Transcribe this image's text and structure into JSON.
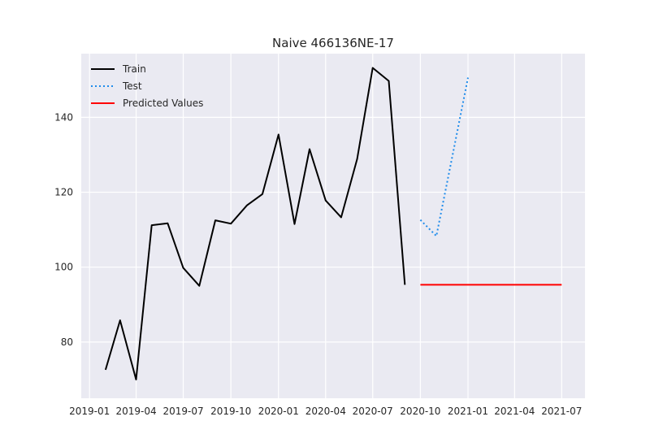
{
  "chart_data": {
    "type": "line",
    "title": "Naive 466136NE-17",
    "xlabel": "",
    "ylabel": "",
    "x_range": [
      "2018-12-16",
      "2021-08-15"
    ],
    "ylim": [
      65,
      157
    ],
    "x_ticks": [
      "2019-01",
      "2019-04",
      "2019-07",
      "2019-10",
      "2020-01",
      "2020-04",
      "2020-07",
      "2020-10",
      "2021-01",
      "2021-04",
      "2021-07"
    ],
    "y_ticks": [
      80,
      100,
      120,
      140
    ],
    "grid": true,
    "legend_position": "top-left",
    "series": [
      {
        "name": "Train",
        "color": "#000000",
        "style": "solid",
        "x": [
          "2019-02-01",
          "2019-03-01",
          "2019-04-01",
          "2019-05-01",
          "2019-06-01",
          "2019-07-01",
          "2019-08-01",
          "2019-09-01",
          "2019-10-01",
          "2019-11-01",
          "2019-12-01",
          "2020-01-01",
          "2020-02-01",
          "2020-03-01",
          "2020-04-01",
          "2020-05-01",
          "2020-06-01",
          "2020-07-01",
          "2020-08-01",
          "2020-09-01"
        ],
        "values": [
          72.6,
          85.8,
          70.0,
          111.2,
          111.7,
          99.8,
          95.0,
          112.5,
          111.6,
          116.5,
          119.5,
          135.4,
          111.5,
          131.5,
          117.8,
          113.3,
          128.9,
          153.2,
          149.7,
          95.3
        ]
      },
      {
        "name": "Test",
        "color": "#1f8ceb",
        "style": "dotted",
        "x": [
          "2020-10-01",
          "2020-11-01",
          "2020-12-01",
          "2021-01-01"
        ],
        "values": [
          112.6,
          108.3,
          129.0,
          150.6
        ]
      },
      {
        "name": "Predicted Values",
        "color": "#ff0000",
        "style": "solid",
        "x": [
          "2020-10-01",
          "2021-07-01"
        ],
        "values": [
          95.3,
          95.3
        ]
      }
    ]
  }
}
